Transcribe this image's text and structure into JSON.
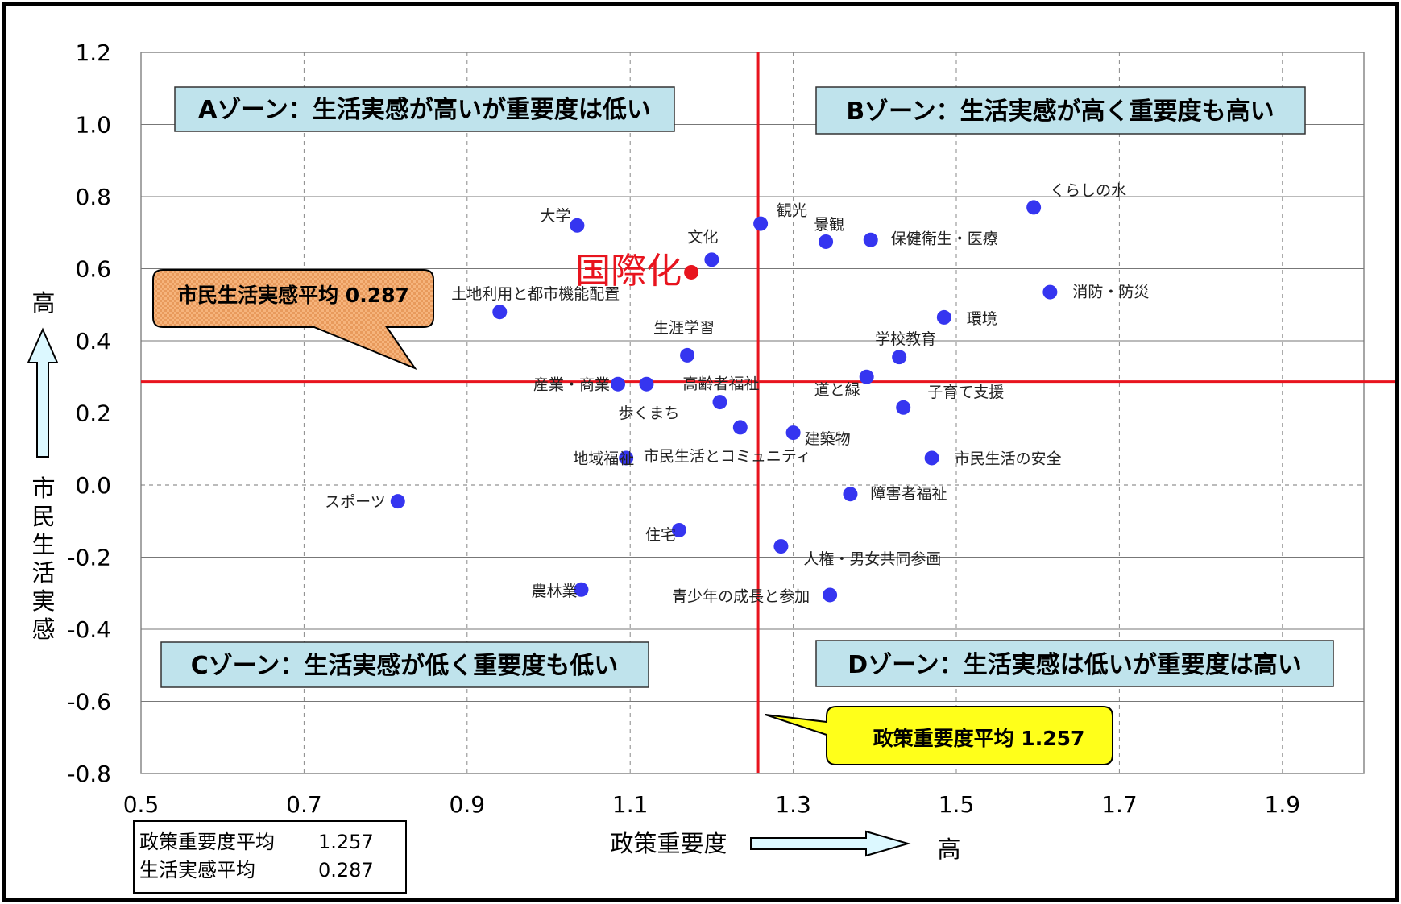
{
  "chart_data": {
    "type": "scatter",
    "xlim": [
      0.5,
      2.0
    ],
    "ylim": [
      -0.8,
      1.2
    ],
    "x_ticks": [
      "0.5",
      "0.7",
      "0.9",
      "1.1",
      "1.3",
      "1.5",
      "1.7",
      "1.9"
    ],
    "y_ticks": [
      "1.2",
      "1.0",
      "0.8",
      "0.6",
      "0.4",
      "0.2",
      "0.0",
      "-0.2",
      "-0.4",
      "-0.6",
      "-0.8"
    ],
    "xlabel": "政策重要度",
    "xlabel_high": "高",
    "ylabel": "市民生活実感",
    "ylabel_high": "高",
    "grid": true,
    "reference_lines": {
      "x": 1.257,
      "y": 0.287,
      "color": "#e8141e"
    },
    "zones": [
      {
        "label": "Aゾーン：生活実感が高いが重要度は低い"
      },
      {
        "label": "Bゾーン：生活実感が高く重要度も高い"
      },
      {
        "label": "Cゾーン：生活実感が低く重要度も低い"
      },
      {
        "label": "Dゾーン：生活実感は低いが重要度は高い"
      }
    ],
    "callouts": {
      "y_mean": "市民生活実感平均 0.287",
      "x_mean": "政策重要度平均 1.257"
    },
    "summary": [
      {
        "label": "政策重要度平均",
        "value": "1.257"
      },
      {
        "label": "生活実感平均",
        "value": "0.287"
      }
    ],
    "highlight": {
      "name": "国際化",
      "x": 1.175,
      "y": 0.59,
      "color": "#e8141e"
    },
    "point_color": "#3535f0",
    "points": [
      {
        "name": "大学",
        "x": 1.035,
        "y": 0.72
      },
      {
        "name": "観光",
        "x": 1.26,
        "y": 0.725
      },
      {
        "name": "景観",
        "x": 1.34,
        "y": 0.675
      },
      {
        "name": "保健衛生・医療",
        "x": 1.395,
        "y": 0.68
      },
      {
        "name": "くらしの水",
        "x": 1.595,
        "y": 0.77
      },
      {
        "name": "文化",
        "x": 1.2,
        "y": 0.625
      },
      {
        "name": "消防・防災",
        "x": 1.615,
        "y": 0.535
      },
      {
        "name": "土地利用と都市機能配置",
        "x": 0.94,
        "y": 0.48
      },
      {
        "name": "環境",
        "x": 1.485,
        "y": 0.465
      },
      {
        "name": "生涯学習",
        "x": 1.17,
        "y": 0.36
      },
      {
        "name": "学校教育",
        "x": 1.43,
        "y": 0.355
      },
      {
        "name": "道と緑",
        "x": 1.39,
        "y": 0.3
      },
      {
        "name": "産業・商業",
        "x": 1.085,
        "y": 0.28
      },
      {
        "name": "高齢者福祉",
        "x": 1.12,
        "y": 0.28
      },
      {
        "name": "歩くまち",
        "x": 1.21,
        "y": 0.23
      },
      {
        "name": "子育て支援",
        "x": 1.435,
        "y": 0.215
      },
      {
        "name": "市民生活とコミュニティ",
        "x": 1.235,
        "y": 0.16
      },
      {
        "name": "建築物",
        "x": 1.3,
        "y": 0.145
      },
      {
        "name": "地域福祉",
        "x": 1.095,
        "y": 0.075
      },
      {
        "name": "市民生活の安全",
        "x": 1.47,
        "y": 0.075
      },
      {
        "name": "障害者福祉",
        "x": 1.37,
        "y": -0.025
      },
      {
        "name": "スポーツ",
        "x": 0.815,
        "y": -0.045
      },
      {
        "name": "住宅",
        "x": 1.16,
        "y": -0.125
      },
      {
        "name": "人権・男女共同参画",
        "x": 1.285,
        "y": -0.17
      },
      {
        "name": "農林業",
        "x": 1.04,
        "y": -0.29
      },
      {
        "name": "青少年の成長と参加",
        "x": 1.345,
        "y": -0.305
      }
    ]
  }
}
